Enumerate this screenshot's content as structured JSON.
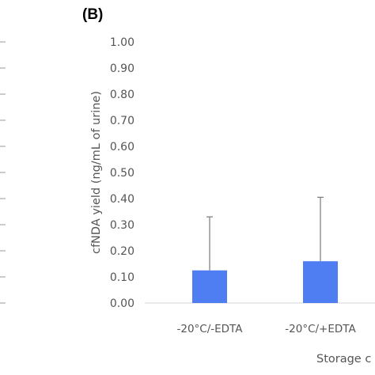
{
  "panel_label": "(B)",
  "chart_data": {
    "type": "bar",
    "categories": [
      "-20°C/-EDTA",
      "-20°C/+EDTA"
    ],
    "values": [
      0.125,
      0.16
    ],
    "error": [
      0.205,
      0.245
    ],
    "ylabel": "cfNDA yield (ng/mL of urine)",
    "xlabel": "Storage c",
    "ylim": [
      0,
      1.0
    ],
    "yticks": [
      "0.00",
      "0.10",
      "0.20",
      "0.30",
      "0.40",
      "0.50",
      "0.60",
      "0.70",
      "0.80",
      "0.90",
      "1.00"
    ],
    "bar_color": "#4f7ef2",
    "error_color": "#7a7a7a",
    "grid": false
  }
}
